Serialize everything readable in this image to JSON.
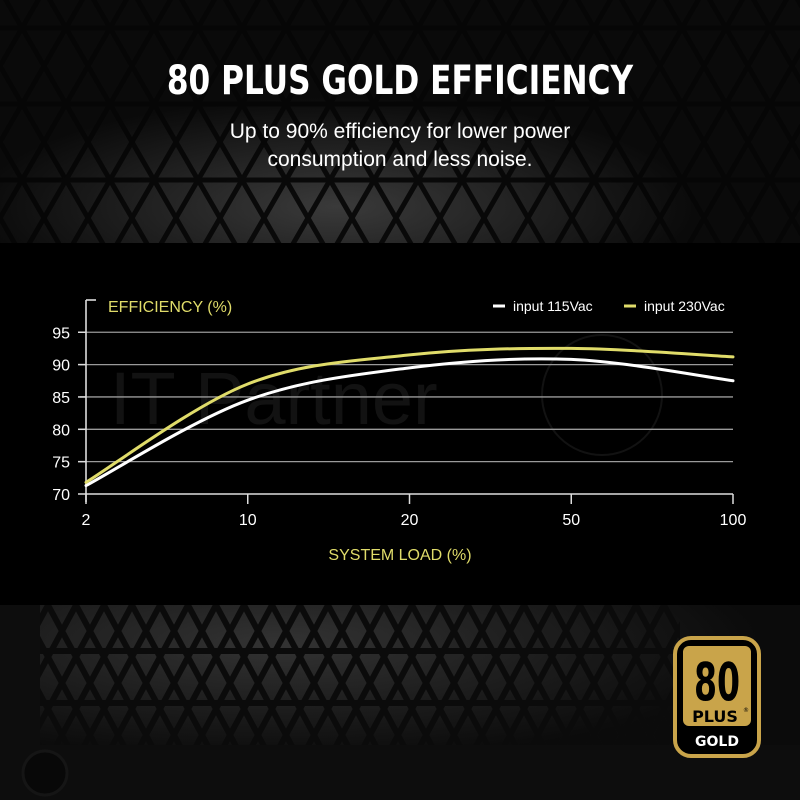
{
  "hero": {
    "title": "80 PLUS GOLD EFFICIENCY",
    "subtitle_line1": "Up to 90% efficiency for lower power",
    "subtitle_line2": "consumption and less noise."
  },
  "badge": {
    "number": "80",
    "plus": "PLUS",
    "registered": "®",
    "tier": "GOLD",
    "color": "#c9a44a"
  },
  "watermark": "IT Partner",
  "chart_data": {
    "type": "line",
    "title": "",
    "ylabel": "EFFICIENCY (%)",
    "xlabel": "SYSTEM LOAD (%)",
    "categories": [
      "2",
      "10",
      "20",
      "50",
      "100"
    ],
    "x": [
      2,
      10,
      20,
      50,
      100
    ],
    "yticks": [
      70,
      75,
      80,
      85,
      90,
      95
    ],
    "ylim": [
      70,
      96
    ],
    "grid": true,
    "legend_position": "top-right",
    "series": [
      {
        "name": "input 115Vac",
        "color": "#ffffff",
        "values": [
          71.3,
          84.5,
          89.5,
          90.8,
          87.5
        ]
      },
      {
        "name": "input 230Vac",
        "color": "#e0dc6a",
        "values": [
          71.8,
          87.0,
          91.5,
          92.5,
          91.2
        ]
      }
    ]
  }
}
